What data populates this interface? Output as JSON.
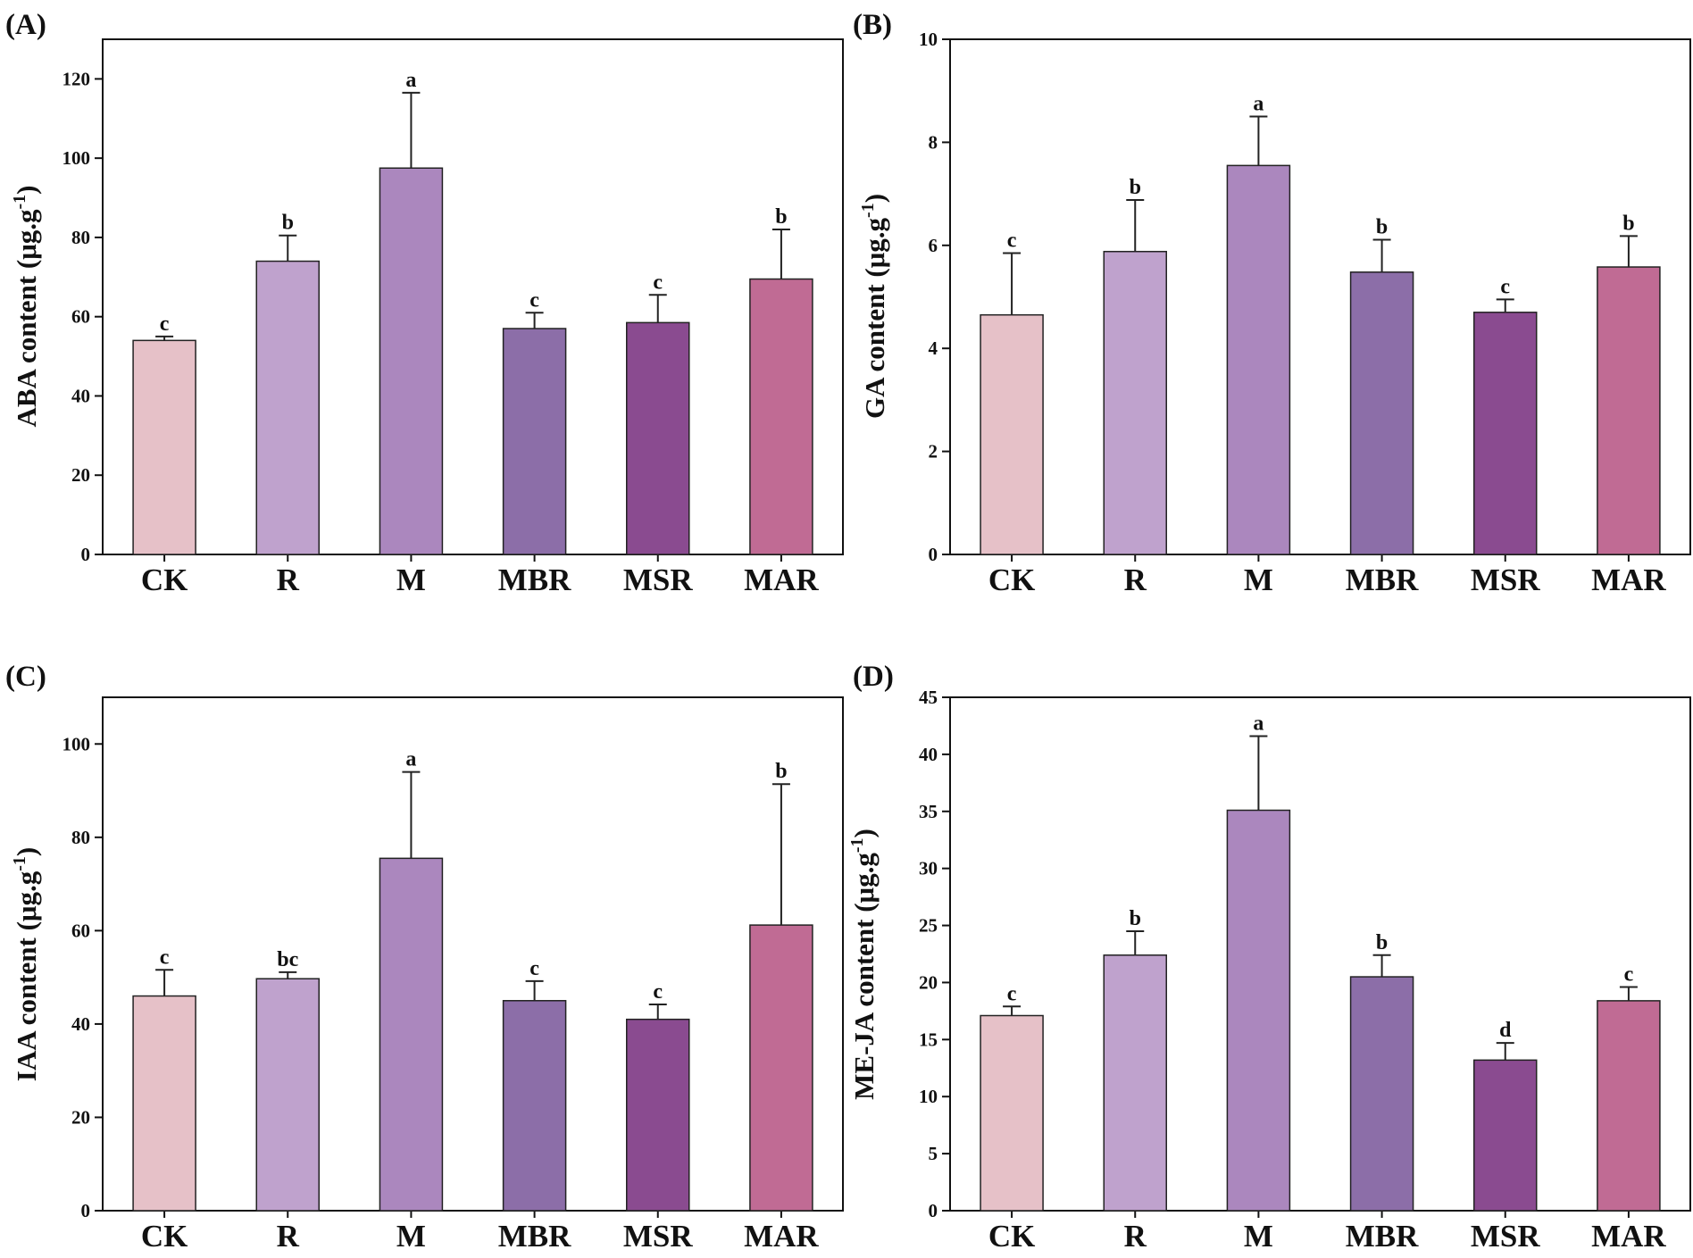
{
  "figure": {
    "categories": [
      "CK",
      "R",
      "M",
      "MBR",
      "MSR",
      "MAR"
    ],
    "colors": [
      "#e6c1c8",
      "#bfa2cd",
      "#ab87be",
      "#8c6ea8",
      "#8a4b90",
      "#c06b94"
    ]
  },
  "chart_data": [
    {
      "type": "bar",
      "panel_label": "(A)",
      "title": "",
      "xlabel": "",
      "ylabel": "ABA content (µg·g-1)",
      "ylabel_main": "ABA content (μg.g",
      "ylabel_sup": "-1",
      "ylabel_close": ")",
      "categories": [
        "CK",
        "R",
        "M",
        "MBR",
        "MSR",
        "MAR"
      ],
      "values": [
        54,
        74,
        97.5,
        57,
        58.5,
        69.5
      ],
      "errors": [
        1,
        6.5,
        19,
        4,
        7,
        12.5
      ],
      "letters": [
        "c",
        "b",
        "a",
        "c",
        "c",
        "b"
      ],
      "ylim": [
        0,
        130
      ],
      "yticks": [
        0,
        20,
        40,
        60,
        80,
        100,
        120
      ]
    },
    {
      "type": "bar",
      "panel_label": "(B)",
      "title": "",
      "xlabel": "",
      "ylabel": "GA content (µg·g-1)",
      "ylabel_main": "GA  content (μg.g",
      "ylabel_sup": "-1",
      "ylabel_close": ")",
      "categories": [
        "CK",
        "R",
        "M",
        "MBR",
        "MSR",
        "MAR"
      ],
      "values": [
        4.65,
        5.88,
        7.55,
        5.48,
        4.7,
        5.58
      ],
      "errors": [
        1.2,
        1.0,
        0.95,
        0.63,
        0.25,
        0.6
      ],
      "letters": [
        "c",
        "b",
        "a",
        "b",
        "c",
        "b"
      ],
      "ylim": [
        0,
        10
      ],
      "yticks": [
        0,
        2,
        4,
        6,
        8,
        10
      ]
    },
    {
      "type": "bar",
      "panel_label": "(C)",
      "title": "",
      "xlabel": "",
      "ylabel": "IAA content (µg·g-1)",
      "ylabel_main": "IAA content (μg.g",
      "ylabel_sup": "-1",
      "ylabel_close": ")",
      "categories": [
        "CK",
        "R",
        "M",
        "MBR",
        "MSR",
        "MAR"
      ],
      "values": [
        46,
        49.7,
        75.5,
        45,
        41,
        61.2
      ],
      "errors": [
        5.6,
        1.4,
        18.5,
        4.2,
        3.2,
        30.2
      ],
      "letters": [
        "c",
        "bc",
        "a",
        "c",
        "c",
        "b"
      ],
      "ylim": [
        0,
        110
      ],
      "yticks": [
        0,
        20,
        40,
        60,
        80,
        100
      ]
    },
    {
      "type": "bar",
      "panel_label": "(D)",
      "title": "",
      "xlabel": "",
      "ylabel": "ME-JA content (µg·g-1)",
      "ylabel_main": "ME-JA  content (μg.g",
      "ylabel_sup": "-1",
      "ylabel_close": ")",
      "categories": [
        "CK",
        "R",
        "M",
        "MBR",
        "MSR",
        "MAR"
      ],
      "values": [
        17.1,
        22.4,
        35.1,
        20.5,
        13.2,
        18.4
      ],
      "errors": [
        0.8,
        2.1,
        6.5,
        1.9,
        1.5,
        1.2
      ],
      "letters": [
        "c",
        "b",
        "a",
        "b",
        "d",
        "c"
      ],
      "ylim": [
        0,
        45
      ],
      "yticks": [
        0,
        5,
        10,
        15,
        20,
        25,
        30,
        35,
        40,
        45
      ]
    }
  ]
}
